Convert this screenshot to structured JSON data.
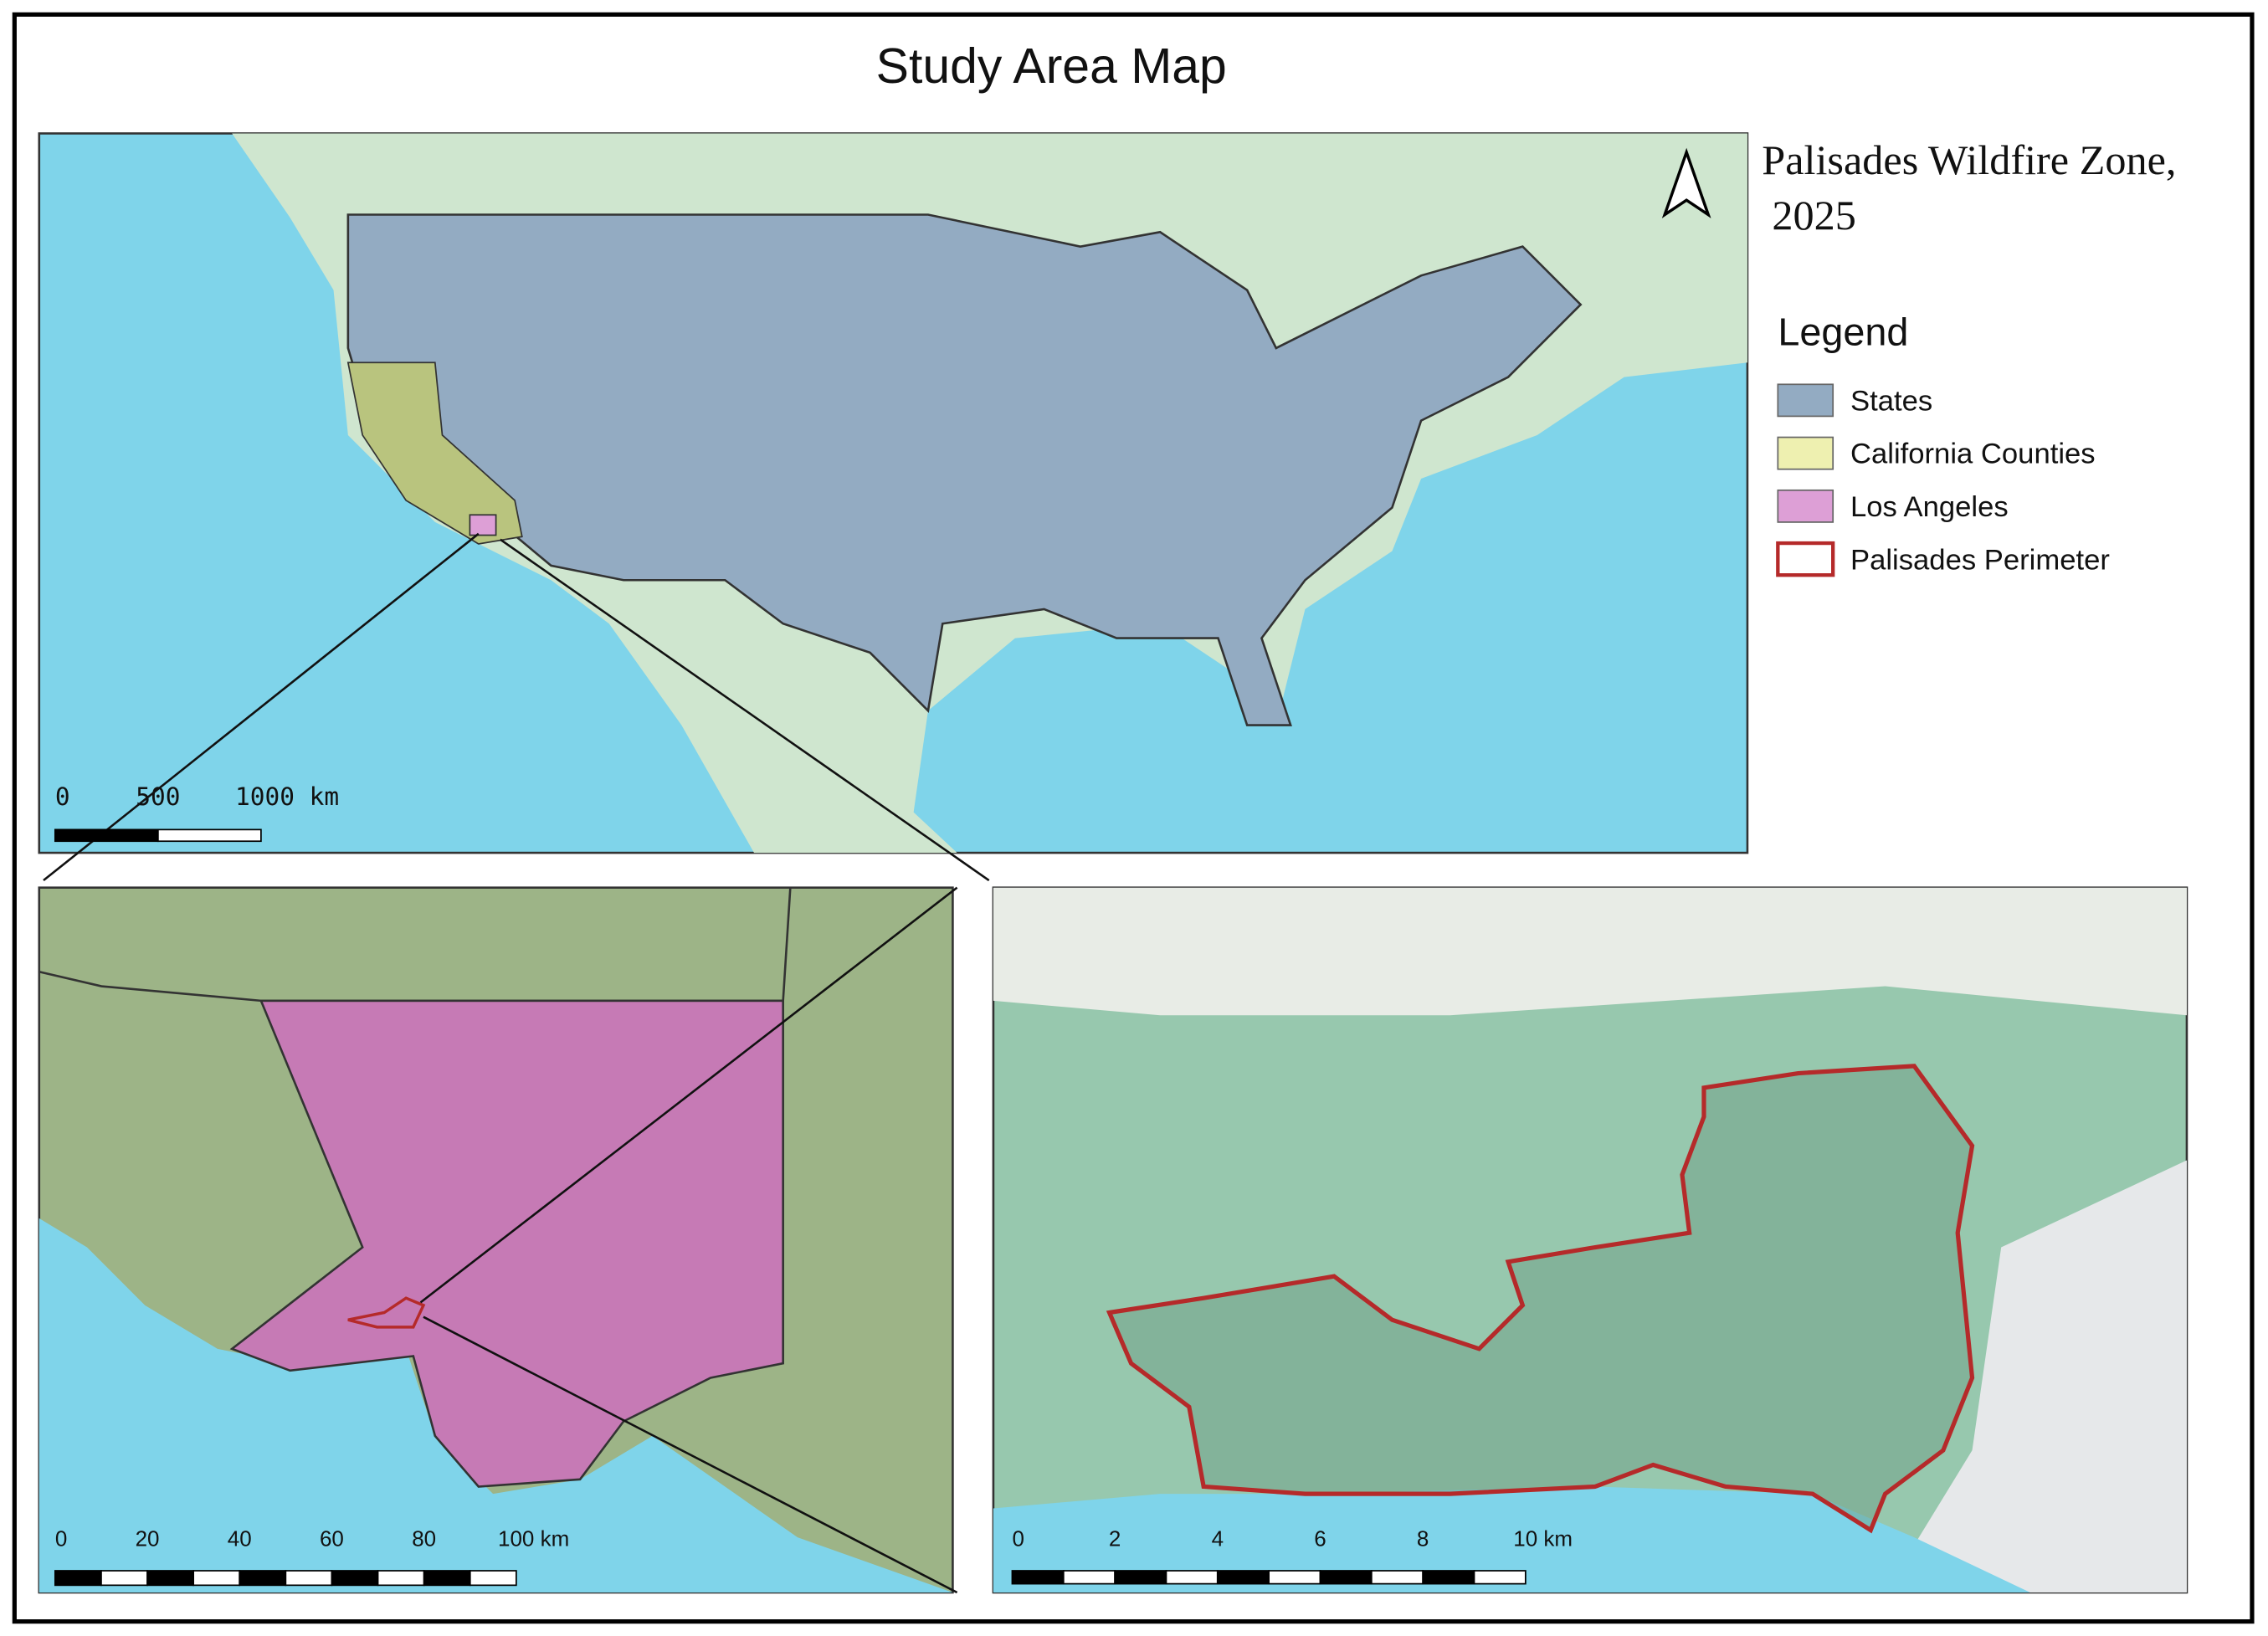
{
  "title": "Study Area Map",
  "map_title": [
    "Palisades Wildfire Zone,",
    "2025"
  ],
  "legend": {
    "title": "Legend",
    "items": [
      {
        "label": "States",
        "color": "#93abc2"
      },
      {
        "label": "California Counties",
        "color": "#eef0b0"
      },
      {
        "label": "Los Angeles",
        "color": "#dd9fd6"
      },
      {
        "label": "Palisades Perimeter",
        "color": "#b52a2a"
      }
    ]
  },
  "scale_bars": {
    "national": [
      "0",
      "500",
      "1000 km"
    ],
    "county": [
      "0",
      "20",
      "40",
      "60",
      "80",
      "100 km"
    ],
    "local": [
      "0",
      "2",
      "4",
      "6",
      "8",
      "10 km"
    ]
  }
}
